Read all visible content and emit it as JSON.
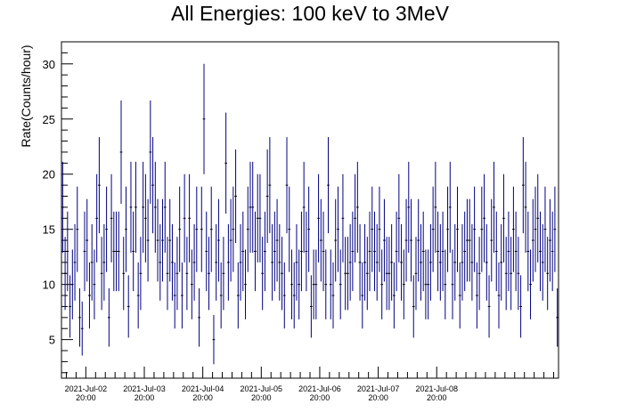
{
  "chart_data": {
    "type": "scatter",
    "style": "error-bars",
    "title": "All Energies:  100 keV to 3MeV",
    "xlabel": "",
    "ylabel": "Rate(Counts/hour)",
    "ylim": [
      1.5,
      32
    ],
    "yticks": [
      5,
      10,
      15,
      20,
      25,
      30
    ],
    "xlim": [
      0,
      204
    ],
    "xticks": [
      {
        "x": 10,
        "date": "2021-Jul-02",
        "time": "20:00"
      },
      {
        "x": 34,
        "date": "2021-Jul-03",
        "time": "20:00"
      },
      {
        "x": 58,
        "date": "2021-Jul-04",
        "time": "20:00"
      },
      {
        "x": 82,
        "date": "2021-Jul-05",
        "time": "20:00"
      },
      {
        "x": 106,
        "date": "2021-Jul-06",
        "time": "20:00"
      },
      {
        "x": 130,
        "date": "2021-Jul-07",
        "time": "20:00"
      },
      {
        "x": 154,
        "date": "2021-Jul-08",
        "time": "20:00"
      }
    ],
    "grid": false,
    "legend": "none",
    "marker_color": "#000080",
    "series": [
      {
        "values": [
          17,
          11,
          13,
          8,
          10,
          12,
          15,
          7,
          6,
          13,
          14,
          9,
          12,
          10,
          16,
          19,
          11,
          12,
          15,
          7,
          16,
          13,
          13,
          13,
          22,
          11,
          15,
          8,
          17,
          13,
          17,
          9,
          11,
          17,
          16,
          14,
          22,
          19,
          17,
          14,
          12,
          14,
          17,
          11,
          14,
          12,
          9,
          11,
          15,
          9,
          16,
          11,
          16,
          10,
          12,
          15,
          7,
          15,
          25,
          13,
          11,
          15,
          5,
          12,
          14,
          9,
          11,
          21,
          12,
          14,
          15,
          18,
          9,
          12,
          13,
          10,
          15,
          17,
          17,
          13,
          16,
          16,
          11,
          13,
          18,
          19,
          12,
          13,
          14,
          12,
          11,
          9,
          19,
          15,
          10,
          9,
          12,
          10,
          13,
          17,
          13,
          15,
          8,
          10,
          10,
          16,
          14,
          13,
          10,
          19,
          10,
          9,
          14,
          15,
          10,
          16,
          11,
          11,
          12,
          13,
          16,
          17,
          12,
          9,
          12,
          11,
          13,
          15,
          13,
          12,
          15,
          10,
          14,
          11,
          11,
          12,
          9,
          13,
          16,
          12,
          10,
          14,
          17,
          14,
          8,
          11,
          14,
          12,
          13,
          10,
          10,
          12,
          15,
          17,
          13,
          12,
          13,
          10,
          15,
          17,
          10,
          12,
          15,
          9,
          12,
          13,
          14,
          14,
          12,
          15,
          9,
          11,
          15,
          16,
          12,
          8,
          14,
          17,
          13,
          9,
          12,
          16,
          11,
          13,
          11,
          15,
          13,
          11,
          8,
          19,
          17,
          13,
          10,
          14,
          15,
          16,
          13,
          12,
          15,
          11,
          14,
          13,
          15,
          7
        ]
      }
    ]
  }
}
